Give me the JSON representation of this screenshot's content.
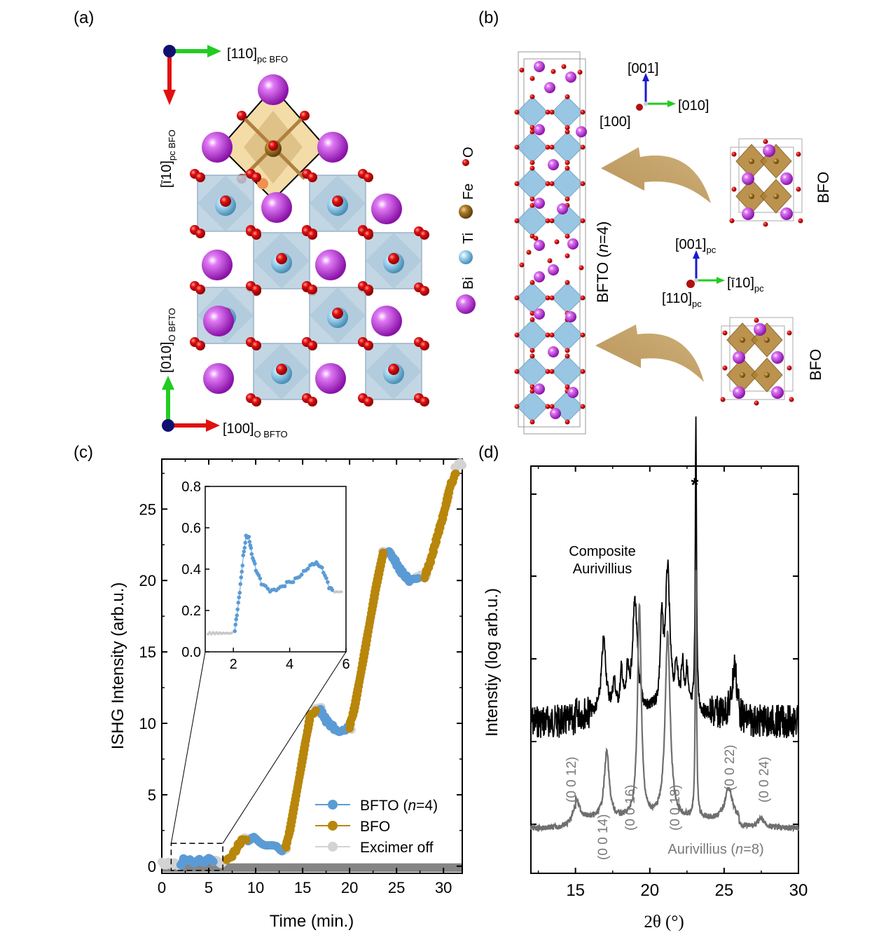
{
  "panels": {
    "a": {
      "label": "(a)",
      "axis_top_x": "[110]",
      "axis_top_x_sub": "pc BFO",
      "axis_top_y": "[ī10]",
      "axis_top_y_sub": "pc BFO",
      "axis_bot_x": "[100]",
      "axis_bot_x_sub": "O BFTO",
      "axis_bot_y": "[010]",
      "axis_bot_y_sub": "O BFTO",
      "legend": [
        {
          "label": "O",
          "color": "#e01010"
        },
        {
          "label": "Fe",
          "color": "#a87a28"
        },
        {
          "label": "Ti",
          "color": "#7fc0e0"
        },
        {
          "label": "Bi",
          "color": "#b536d8"
        }
      ]
    },
    "b": {
      "label": "(b)",
      "axes1": {
        "z": "[001]",
        "x": "[100]",
        "y": "[010]"
      },
      "axes2": {
        "z": "[001]",
        "z_sub": "pc",
        "x": "[110]",
        "x_sub": "pc",
        "y": "[ī10]",
        "y_sub": "pc"
      },
      "bfto_label": "BFTO (",
      "bfto_n": "n",
      "bfto_rest": "=4)",
      "bfo_top": "BFO",
      "bfo_bottom": "BFO"
    },
    "c": {
      "label": "(c)",
      "xlabel": "Time (min.)",
      "ylabel": "ISHG Intensity (arb.u.)",
      "xticks": [
        "0",
        "5",
        "10",
        "15",
        "20",
        "25",
        "30"
      ],
      "yticks": [
        "0",
        "5",
        "10",
        "15",
        "20",
        "25"
      ],
      "inset_xticks": [
        "2",
        "4",
        "6"
      ],
      "inset_yticks": [
        "0.0",
        "0.2",
        "0.4",
        "0.6",
        "0.8"
      ],
      "legend": [
        {
          "label": "BFTO (",
          "italic": "n",
          "rest": "=4)",
          "color": "#5b9bd5"
        },
        {
          "label": "BFO",
          "italic": "",
          "rest": "",
          "color": "#b8860b"
        },
        {
          "label": "Excimer off",
          "italic": "",
          "rest": "",
          "color": "#d3d3d3"
        }
      ]
    },
    "d": {
      "label": "(d)",
      "xlabel": "2θ (°)",
      "ylabel": "Intenstiy (log arb.u.)",
      "xticks": [
        "15",
        "20",
        "25",
        "30"
      ],
      "composite_label_1": "Composite",
      "composite_label_2": "Aurivillius",
      "aur_label": "Aurivillius (",
      "aur_n": "n",
      "aur_rest": "=8)",
      "star": "*",
      "peaks": [
        "(0 0 12)",
        "(0 0 14)",
        "(0 0 16)",
        "(0 0 18)",
        "(0 0 22)",
        "(0 0 24)"
      ]
    }
  },
  "chart_data": [
    {
      "type": "scatter",
      "title": "",
      "xlabel": "Time (min.)",
      "ylabel": "ISHG Intensity (arb.u.)",
      "xlim": [
        0,
        32
      ],
      "ylim": [
        -0.5,
        28.5
      ],
      "series": [
        {
          "name": "BFTO (n=4)",
          "color": "#5b9bd5",
          "segments": [
            [
              [
                2,
                0.1
              ],
              [
                2.3,
                0.4
              ],
              [
                2.5,
                0.55
              ],
              [
                3,
                0.35
              ],
              [
                4,
                0.35
              ],
              [
                5,
                0.42
              ],
              [
                5.5,
                0.3
              ]
            ],
            [
              [
                9.2,
                1.9
              ],
              [
                10,
                1.9
              ],
              [
                11,
                1.6
              ],
              [
                12,
                1.3
              ],
              [
                12.8,
                1.2
              ]
            ],
            [
              [
                16.9,
                10.9
              ],
              [
                17.5,
                10.2
              ],
              [
                18.5,
                9.6
              ],
              [
                19.3,
                9.5
              ],
              [
                19.8,
                9.8
              ]
            ],
            [
              [
                24.2,
                22.0
              ],
              [
                24.8,
                21.4
              ],
              [
                25.5,
                20.6
              ],
              [
                26.5,
                19.9
              ],
              [
                27.3,
                20.3
              ]
            ]
          ]
        },
        {
          "name": "BFO",
          "color": "#b8860b",
          "segments": [
            [
              [
                6.9,
                0.3
              ],
              [
                7.5,
                0.7
              ],
              [
                8,
                1.3
              ],
              [
                8.5,
                1.8
              ],
              [
                9,
                1.9
              ]
            ],
            [
              [
                13.2,
                1.3
              ],
              [
                13.7,
                2.7
              ],
              [
                14.4,
                5.3
              ],
              [
                15.2,
                8.3
              ],
              [
                15.8,
                10.5
              ],
              [
                16.4,
                11.0
              ]
            ],
            [
              [
                20.0,
                9.8
              ],
              [
                20.5,
                11.0
              ],
              [
                21.2,
                13.5
              ],
              [
                22,
                16.5
              ],
              [
                22.8,
                19.5
              ],
              [
                23.6,
                22.0
              ]
            ],
            [
              [
                28.0,
                20.3
              ],
              [
                28.6,
                21.3
              ],
              [
                29.3,
                23.0
              ],
              [
                30,
                24.6
              ],
              [
                30.8,
                26.8
              ],
              [
                31.3,
                27.4
              ]
            ]
          ]
        },
        {
          "name": "Excimer off",
          "color": "#d3d3d3",
          "segments": [
            [
              [
                0,
                0.15
              ],
              [
                2,
                0.15
              ]
            ],
            [
              [
                5.5,
                0.3
              ],
              [
                6.9,
                0.3
              ]
            ],
            [
              [
                8.8,
                1.9
              ],
              [
                9.5,
                1.9
              ]
            ],
            [
              [
                12.8,
                1.2
              ],
              [
                13.3,
                1.3
              ]
            ],
            [
              [
                16.3,
                11.0
              ],
              [
                17.0,
                11.0
              ]
            ],
            [
              [
                19.6,
                9.6
              ],
              [
                20.2,
                9.7
              ]
            ],
            [
              [
                23.5,
                22.2
              ],
              [
                24.4,
                22.1
              ]
            ],
            [
              [
                27.1,
                20.3
              ],
              [
                28.2,
                20.3
              ]
            ],
            [
              [
                31.2,
                28.0
              ],
              [
                32,
                28.2
              ]
            ]
          ]
        }
      ]
    },
    {
      "type": "scatter",
      "title": "",
      "inset": true,
      "xlim": [
        1,
        6
      ],
      "ylim": [
        0,
        0.8
      ],
      "series": [
        {
          "name": "Excimer off",
          "color": "#d3d3d3",
          "points": [
            [
              1.1,
              0.09
            ],
            [
              1.4,
              0.09
            ],
            [
              1.7,
              0.09
            ],
            [
              2.0,
              0.09
            ],
            [
              5.6,
              0.29
            ],
            [
              5.85,
              0.29
            ]
          ]
        },
        {
          "name": "BFTO (n=4)",
          "color": "#5b9bd5",
          "points": [
            [
              2.05,
              0.1
            ],
            [
              2.15,
              0.2
            ],
            [
              2.25,
              0.32
            ],
            [
              2.35,
              0.46
            ],
            [
              2.45,
              0.56
            ],
            [
              2.55,
              0.56
            ],
            [
              2.65,
              0.48
            ],
            [
              2.8,
              0.4
            ],
            [
              3.0,
              0.33
            ],
            [
              3.3,
              0.29
            ],
            [
              3.6,
              0.3
            ],
            [
              3.9,
              0.33
            ],
            [
              4.2,
              0.35
            ],
            [
              4.5,
              0.39
            ],
            [
              4.8,
              0.43
            ],
            [
              5.0,
              0.43
            ],
            [
              5.2,
              0.39
            ],
            [
              5.4,
              0.31
            ],
            [
              5.55,
              0.29
            ]
          ]
        }
      ]
    },
    {
      "type": "line",
      "title": "",
      "xlabel": "2θ (°)",
      "ylabel": "Intenstiy (log arb.u.)",
      "xlim": [
        12,
        30
      ],
      "log_scale": true,
      "series": [
        {
          "name": "Composite Aurivillius",
          "color": "#000000",
          "peaks_2theta": [
            16.9,
            19.0,
            20.8,
            21.2,
            23.1,
            25.7
          ]
        },
        {
          "name": "Aurivillius (n=8)",
          "color": "#6e6e6e",
          "peaks_2theta": [
            15.0,
            17.1,
            19.3,
            21.2,
            23.1,
            25.3,
            27.5
          ]
        }
      ]
    }
  ]
}
